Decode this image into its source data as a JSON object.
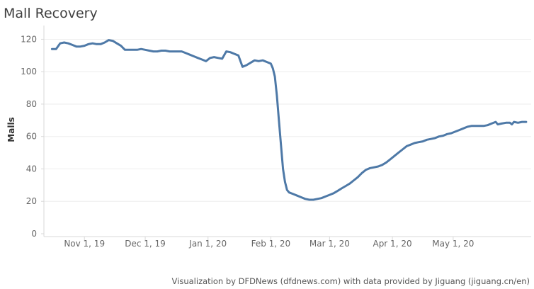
{
  "chart_data": {
    "type": "line",
    "title": "Mall Recovery",
    "ylabel": "Malls",
    "xlabel": "",
    "ylim": [
      0,
      125
    ],
    "yticks": [
      0,
      20,
      40,
      60,
      80,
      100,
      120
    ],
    "xticks": [
      {
        "date": "2019-11-01",
        "label": "Nov 1, 19"
      },
      {
        "date": "2019-12-01",
        "label": "Dec 1, 19"
      },
      {
        "date": "2020-01-01",
        "label": "Jan 1, 20"
      },
      {
        "date": "2020-02-01",
        "label": "Feb 1, 20"
      },
      {
        "date": "2020-03-01",
        "label": "Mar 1, 20"
      },
      {
        "date": "2020-04-01",
        "label": "Apr 1, 20"
      },
      {
        "date": "2020-05-01",
        "label": "May 1, 20"
      }
    ],
    "xlim": [
      "2019-10-12",
      "2020-06-05"
    ],
    "grid": "horizontal",
    "line_color": "#4e79a7",
    "series": [
      {
        "points": [
          [
            "2019-10-16",
            114
          ],
          [
            "2019-10-18",
            114
          ],
          [
            "2019-10-20",
            117.5
          ],
          [
            "2019-10-22",
            118
          ],
          [
            "2019-10-24",
            117.5
          ],
          [
            "2019-10-26",
            116.5
          ],
          [
            "2019-10-28",
            115.5
          ],
          [
            "2019-10-30",
            115.5
          ],
          [
            "2019-11-01",
            116
          ],
          [
            "2019-11-03",
            117
          ],
          [
            "2019-11-05",
            117.5
          ],
          [
            "2019-11-07",
            117
          ],
          [
            "2019-11-09",
            117
          ],
          [
            "2019-11-11",
            118
          ],
          [
            "2019-11-13",
            119.5
          ],
          [
            "2019-11-15",
            119
          ],
          [
            "2019-11-17",
            117.5
          ],
          [
            "2019-11-19",
            116
          ],
          [
            "2019-11-21",
            113.5
          ],
          [
            "2019-11-23",
            113.5
          ],
          [
            "2019-11-25",
            113.5
          ],
          [
            "2019-11-27",
            113.5
          ],
          [
            "2019-11-29",
            114
          ],
          [
            "2019-12-01",
            113.5
          ],
          [
            "2019-12-03",
            113
          ],
          [
            "2019-12-05",
            112.5
          ],
          [
            "2019-12-07",
            112.5
          ],
          [
            "2019-12-09",
            113
          ],
          [
            "2019-12-11",
            113
          ],
          [
            "2019-12-13",
            112.5
          ],
          [
            "2019-12-15",
            112.5
          ],
          [
            "2019-12-17",
            112.5
          ],
          [
            "2019-12-19",
            112.5
          ],
          [
            "2019-12-21",
            111.5
          ],
          [
            "2019-12-23",
            110.5
          ],
          [
            "2019-12-25",
            109.5
          ],
          [
            "2019-12-27",
            108.5
          ],
          [
            "2019-12-29",
            107.5
          ],
          [
            "2019-12-31",
            106.5
          ],
          [
            "2020-01-02",
            108.5
          ],
          [
            "2020-01-04",
            109
          ],
          [
            "2020-01-06",
            108.5
          ],
          [
            "2020-01-08",
            108
          ],
          [
            "2020-01-10",
            112.5
          ],
          [
            "2020-01-12",
            112
          ],
          [
            "2020-01-14",
            111
          ],
          [
            "2020-01-16",
            110
          ],
          [
            "2020-01-18",
            103
          ],
          [
            "2020-01-20",
            104
          ],
          [
            "2020-01-22",
            105.5
          ],
          [
            "2020-01-24",
            107
          ],
          [
            "2020-01-26",
            106.5
          ],
          [
            "2020-01-28",
            107
          ],
          [
            "2020-01-30",
            106
          ],
          [
            "2020-02-01",
            105
          ],
          [
            "2020-02-02",
            102
          ],
          [
            "2020-02-03",
            97
          ],
          [
            "2020-02-04",
            85
          ],
          [
            "2020-02-05",
            70
          ],
          [
            "2020-02-06",
            55
          ],
          [
            "2020-02-07",
            40
          ],
          [
            "2020-02-08",
            32
          ],
          [
            "2020-02-09",
            27
          ],
          [
            "2020-02-10",
            25.5
          ],
          [
            "2020-02-12",
            24.5
          ],
          [
            "2020-02-14",
            23.5
          ],
          [
            "2020-02-16",
            22.5
          ],
          [
            "2020-02-18",
            21.5
          ],
          [
            "2020-02-20",
            21
          ],
          [
            "2020-02-22",
            21
          ],
          [
            "2020-02-24",
            21.5
          ],
          [
            "2020-02-26",
            22
          ],
          [
            "2020-02-28",
            23
          ],
          [
            "2020-03-01",
            24
          ],
          [
            "2020-03-03",
            25
          ],
          [
            "2020-03-05",
            26.5
          ],
          [
            "2020-03-07",
            28
          ],
          [
            "2020-03-09",
            29.5
          ],
          [
            "2020-03-11",
            31
          ],
          [
            "2020-03-13",
            33
          ],
          [
            "2020-03-15",
            35
          ],
          [
            "2020-03-17",
            37.5
          ],
          [
            "2020-03-19",
            39.5
          ],
          [
            "2020-03-21",
            40.5
          ],
          [
            "2020-03-23",
            41
          ],
          [
            "2020-03-25",
            41.5
          ],
          [
            "2020-03-27",
            42.5
          ],
          [
            "2020-03-29",
            44
          ],
          [
            "2020-03-31",
            46
          ],
          [
            "2020-04-02",
            48
          ],
          [
            "2020-04-04",
            50
          ],
          [
            "2020-04-06",
            52
          ],
          [
            "2020-04-08",
            54
          ],
          [
            "2020-04-10",
            55
          ],
          [
            "2020-04-12",
            56
          ],
          [
            "2020-04-14",
            56.5
          ],
          [
            "2020-04-16",
            57
          ],
          [
            "2020-04-18",
            58
          ],
          [
            "2020-04-20",
            58.5
          ],
          [
            "2020-04-22",
            59
          ],
          [
            "2020-04-24",
            60
          ],
          [
            "2020-04-26",
            60.5
          ],
          [
            "2020-04-28",
            61.5
          ],
          [
            "2020-04-30",
            62
          ],
          [
            "2020-05-02",
            63
          ],
          [
            "2020-05-04",
            64
          ],
          [
            "2020-05-06",
            65
          ],
          [
            "2020-05-08",
            66
          ],
          [
            "2020-05-10",
            66.5
          ],
          [
            "2020-05-12",
            66.5
          ],
          [
            "2020-05-14",
            66.5
          ],
          [
            "2020-05-16",
            66.5
          ],
          [
            "2020-05-18",
            67
          ],
          [
            "2020-05-20",
            68
          ],
          [
            "2020-05-22",
            69
          ],
          [
            "2020-05-23",
            67.5
          ],
          [
            "2020-05-25",
            68
          ],
          [
            "2020-05-27",
            68.5
          ],
          [
            "2020-05-29",
            68.5
          ],
          [
            "2020-05-30",
            67.5
          ],
          [
            "2020-05-31",
            69
          ],
          [
            "2020-06-02",
            68.5
          ],
          [
            "2020-06-04",
            69
          ],
          [
            "2020-06-06",
            69
          ]
        ]
      }
    ]
  },
  "footer": {
    "credit": "Visualization by DFDNews (dfdnews.com) with data provided by Jiguang (jiguang.cn/en)"
  }
}
